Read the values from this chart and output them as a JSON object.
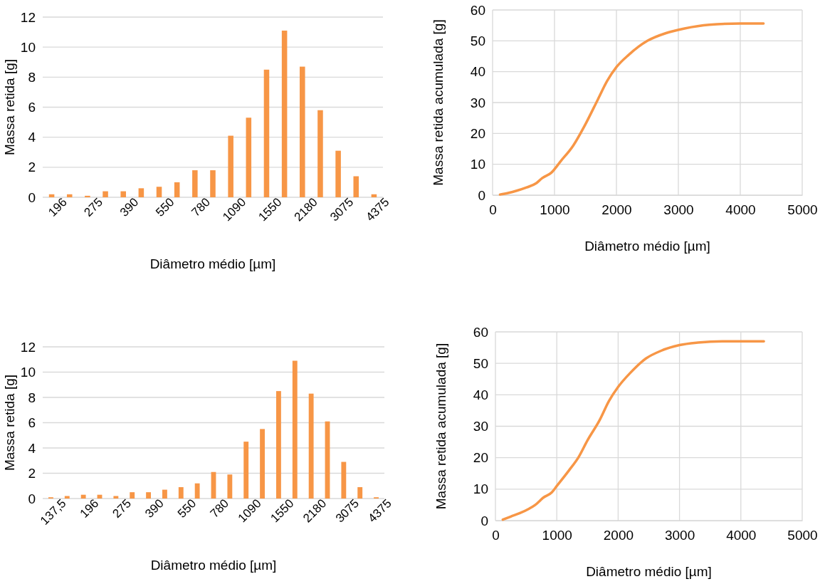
{
  "chart_data": [
    {
      "type": "bar",
      "xlabel": "Diâmetro médio [µm]",
      "ylabel": "Massa retida [g]",
      "categories": [
        "196",
        null,
        "275",
        null,
        "390",
        null,
        "550",
        null,
        "780",
        null,
        "1090",
        null,
        "1550",
        null,
        "2180",
        null,
        "3075",
        null,
        "4375"
      ],
      "values": [
        0.2,
        0.2,
        0.1,
        0.4,
        0.4,
        0.6,
        0.7,
        1.0,
        1.8,
        1.8,
        4.1,
        5.3,
        8.5,
        11.1,
        8.7,
        5.8,
        3.1,
        1.4,
        0.2
      ],
      "color": "#f79646",
      "ylim": [
        0,
        12
      ],
      "yticks": [
        0,
        2,
        4,
        6,
        8,
        10,
        12
      ],
      "grid": "y"
    },
    {
      "type": "line",
      "xlabel": "Diâmetro médio [µm]",
      "ylabel": "Massa retida acumulada [g]",
      "color": "#f79646",
      "x": [
        120,
        250,
        400,
        550,
        700,
        800,
        950,
        1100,
        1300,
        1500,
        1700,
        1850,
        2000,
        2200,
        2500,
        2800,
        3100,
        3500,
        4000,
        4375
      ],
      "values": [
        0.2,
        0.7,
        1.5,
        2.5,
        3.8,
        5.5,
        7.3,
        11,
        16,
        23,
        31,
        37,
        41.5,
        45.5,
        50,
        52.5,
        54,
        55.2,
        55.6,
        55.6
      ],
      "xlim": [
        0,
        5000
      ],
      "xticks": [
        0,
        1000,
        2000,
        3000,
        4000,
        5000
      ],
      "ylim": [
        0,
        60
      ],
      "yticks": [
        0,
        10,
        20,
        30,
        40,
        50,
        60
      ],
      "grid": true
    },
    {
      "type": "bar",
      "xlabel": "Diâmetro médio [µm]",
      "ylabel": "Massa retida [g]",
      "categories": [
        "137,5",
        null,
        "196",
        null,
        "275",
        null,
        "390",
        null,
        "550",
        null,
        "780",
        null,
        "1090",
        null,
        "1550",
        null,
        "2180",
        null,
        "3075",
        null,
        "4375"
      ],
      "values": [
        0.1,
        0.2,
        0.3,
        0.3,
        0.2,
        0.5,
        0.5,
        0.7,
        0.9,
        1.2,
        2.1,
        1.9,
        4.5,
        5.5,
        8.5,
        10.9,
        8.3,
        6.1,
        2.9,
        0.9,
        0.1
      ],
      "color": "#f79646",
      "ylim": [
        0,
        12
      ],
      "yticks": [
        0,
        2,
        4,
        6,
        8,
        10,
        12
      ],
      "grid": "y"
    },
    {
      "type": "line",
      "xlabel": "Diâmetro médio [µm]",
      "ylabel": "Massa retida acumulada [g]",
      "color": "#f79646",
      "x": [
        120,
        250,
        400,
        550,
        650,
        780,
        920,
        1000,
        1200,
        1350,
        1500,
        1700,
        1850,
        2000,
        2200,
        2450,
        2700,
        3000,
        3300,
        3700,
        4375
      ],
      "values": [
        0.3,
        1.3,
        2.4,
        3.8,
        5,
        7.3,
        9,
        11,
        16,
        20,
        25.5,
        32,
        38,
        42.5,
        47,
        51.5,
        54,
        55.8,
        56.6,
        57,
        57
      ],
      "xlim": [
        0,
        5000
      ],
      "xticks": [
        0,
        1000,
        2000,
        3000,
        4000,
        5000
      ],
      "ylim": [
        0,
        60
      ],
      "yticks": [
        0,
        10,
        20,
        30,
        40,
        50,
        60
      ],
      "grid": true
    }
  ]
}
